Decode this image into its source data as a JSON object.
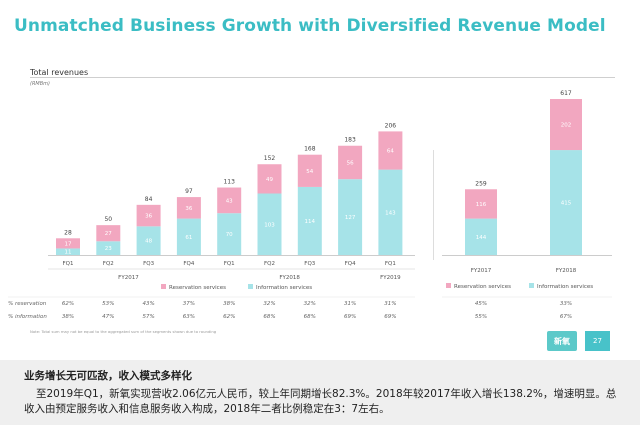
{
  "title": "Unmatched Business Growth with Diversified Revenue Model",
  "subtitle": "Total revenues",
  "units": "(RMBm)",
  "colors": {
    "reservation": "#f2a7c0",
    "information": "#a6e3e8",
    "accent": "#3bbdc4"
  },
  "chart_data": [
    {
      "type": "bar",
      "stacked": true,
      "title": "Total revenues",
      "ylabel": "(RMBm)",
      "categories": [
        "FQ1",
        "FQ2",
        "FQ3",
        "FQ4",
        "FQ1",
        "FQ2",
        "FQ3",
        "FQ4",
        "FQ1"
      ],
      "groups": [
        {
          "label": "FY2017",
          "span": [
            0,
            3
          ]
        },
        {
          "label": "FY2018",
          "span": [
            4,
            7
          ]
        },
        {
          "label": "FY2019",
          "span": [
            8,
            8
          ]
        }
      ],
      "series": [
        {
          "name": "Information services",
          "values": [
            11,
            23,
            48,
            61,
            70,
            103,
            114,
            127,
            143
          ]
        },
        {
          "name": "Reservation services",
          "values": [
            17,
            27,
            36,
            36,
            43,
            49,
            54,
            56,
            64
          ]
        }
      ],
      "totals": [
        28,
        50,
        84,
        97,
        113,
        152,
        168,
        183,
        206
      ],
      "ylim": [
        0,
        215
      ],
      "legend": [
        "Reservation services",
        "Information services"
      ]
    },
    {
      "type": "bar",
      "stacked": true,
      "categories": [
        "FY2017",
        "FY2018"
      ],
      "series": [
        {
          "name": "Information services",
          "values": [
            144,
            415
          ]
        },
        {
          "name": "Reservation services",
          "values": [
            116,
            202
          ]
        }
      ],
      "totals": [
        259,
        617
      ],
      "ylim": [
        0,
        620
      ],
      "legend": [
        "Reservation services",
        "Information services"
      ]
    }
  ],
  "table": {
    "rows": [
      {
        "label": "% reservation",
        "quarterly": [
          "62%",
          "53%",
          "43%",
          "37%",
          "38%",
          "32%",
          "32%",
          "31%",
          "31%"
        ],
        "annual": [
          "45%",
          "33%"
        ]
      },
      {
        "label": "% information",
        "quarterly": [
          "38%",
          "47%",
          "57%",
          "63%",
          "62%",
          "68%",
          "68%",
          "69%",
          "69%"
        ],
        "annual": [
          "55%",
          "67%"
        ]
      }
    ]
  },
  "note": "Note: Total sum may not be equal to the aggregated sum of the segments shown due to rounding",
  "logo_text": "新氧",
  "page_number": "27",
  "caption": {
    "heading": "业务增长无可匹敌，收入模式多样化",
    "body": "至2019年Q1，新氧实现营收2.06亿元人民币，较上年同期增长82.3%。2018年较2017年收入增长138.2%，增速明显。总收入由预定服务收入和信息服务收入构成，2018年二者比例稳定在3：7左右。"
  }
}
